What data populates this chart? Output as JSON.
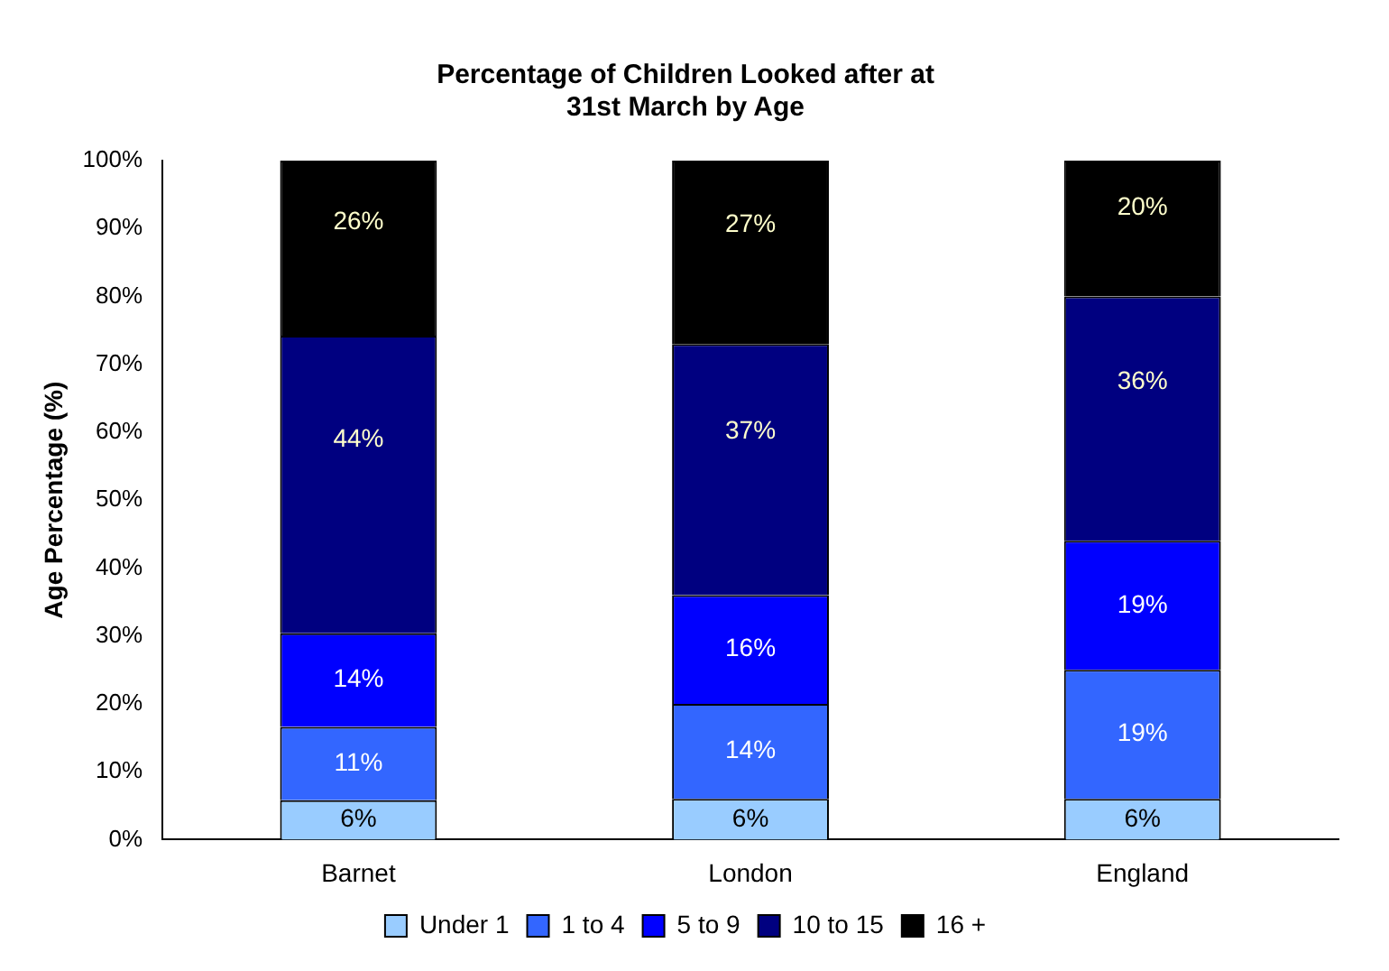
{
  "chart_data": {
    "type": "bar",
    "stacked": true,
    "title": "Percentage of Children Looked after at\n31st March by Age",
    "ylabel": "Age Percentage (%)",
    "categories": [
      "Barnet",
      "London",
      "England"
    ],
    "series": [
      {
        "name": "Under 1",
        "color": "#99ccff",
        "values": [
          5.8,
          6,
          6
        ],
        "value_labels": [
          "6%",
          "6%",
          "6%"
        ]
      },
      {
        "name": "1 to 4",
        "color": "#3366ff",
        "values": [
          10.8,
          14,
          19
        ],
        "value_labels": [
          "11%",
          "14%",
          "19%"
        ]
      },
      {
        "name": "5 to 9",
        "color": "#0000ff",
        "values": [
          13.8,
          16,
          19
        ],
        "value_labels": [
          "14%",
          "16%",
          "19%"
        ]
      },
      {
        "name": "10 to 15",
        "color": "#000080",
        "values": [
          43.8,
          37,
          36
        ],
        "value_labels": [
          "44%",
          "37%",
          "36%"
        ]
      },
      {
        "name": "16 +",
        "color": "#000000",
        "values": [
          25.8,
          27,
          20
        ],
        "value_labels": [
          "26%",
          "27%",
          "20%"
        ]
      }
    ],
    "ylim": [
      0,
      100
    ],
    "yticks": [
      {
        "value": 0,
        "label": "0%"
      },
      {
        "value": 10,
        "label": "10%"
      },
      {
        "value": 20,
        "label": "20%"
      },
      {
        "value": 30,
        "label": "30%"
      },
      {
        "value": 40,
        "label": "40%"
      },
      {
        "value": 50,
        "label": "50%"
      },
      {
        "value": 60,
        "label": "60%"
      },
      {
        "value": 70,
        "label": "70%"
      },
      {
        "value": 80,
        "label": "80%"
      },
      {
        "value": 90,
        "label": "90%"
      },
      {
        "value": 100,
        "label": "100%"
      }
    ],
    "grid": false,
    "legend": "bottom"
  }
}
